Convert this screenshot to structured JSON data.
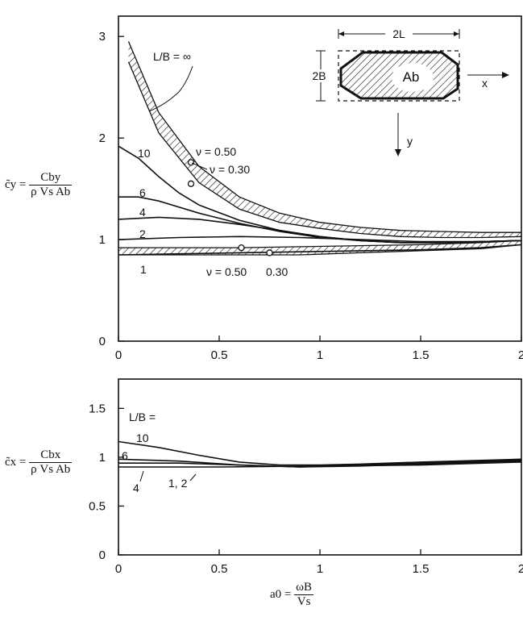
{
  "chart_data": [
    {
      "type": "line",
      "panel": "upper",
      "xlim": [
        0,
        2
      ],
      "ylim": [
        0,
        3.2
      ],
      "xticks": [
        "0",
        "0.5",
        "1",
        "1.5",
        "2"
      ],
      "yticks": [
        "0",
        "1",
        "2",
        "3"
      ],
      "ylabel": {
        "lhs": "c̃y =",
        "num": "Cby",
        "den": "ρ Vs Ab"
      },
      "series": [
        {
          "name": "1",
          "x": [
            0,
            0.3,
            0.6,
            0.9,
            1.2,
            1.5,
            1.8,
            2.0
          ],
          "y": [
            0.85,
            0.86,
            0.87,
            0.88,
            0.89,
            0.9,
            0.92,
            0.95
          ]
        },
        {
          "name": "2",
          "x": [
            0,
            0.3,
            0.6,
            0.9,
            1.2,
            1.5,
            1.8,
            2.0
          ],
          "y": [
            1.0,
            1.02,
            1.03,
            1.02,
            1.0,
            0.98,
            0.98,
            0.99
          ]
        },
        {
          "name": "4",
          "x": [
            0,
            0.2,
            0.4,
            0.6,
            0.8,
            1.0,
            1.2,
            1.4,
            1.6,
            1.8,
            2.0
          ],
          "y": [
            1.2,
            1.22,
            1.2,
            1.15,
            1.09,
            1.03,
            0.99,
            0.97,
            0.97,
            0.98,
            0.99
          ]
        },
        {
          "name": "6",
          "x": [
            0,
            0.1,
            0.2,
            0.4,
            0.6,
            0.8,
            1.0,
            1.2,
            1.4,
            1.6,
            1.8,
            2.0
          ],
          "y": [
            1.42,
            1.42,
            1.38,
            1.26,
            1.16,
            1.08,
            1.02,
            0.99,
            0.97,
            0.97,
            0.98,
            0.99
          ]
        },
        {
          "name": "10",
          "x": [
            0,
            0.1,
            0.2,
            0.3,
            0.4,
            0.6,
            0.8,
            1.0,
            1.2,
            1.4,
            1.6,
            1.8,
            2.0
          ],
          "y": [
            1.92,
            1.8,
            1.62,
            1.46,
            1.34,
            1.19,
            1.09,
            1.03,
            0.99,
            0.97,
            0.97,
            0.98,
            0.99
          ]
        }
      ],
      "bands": [
        {
          "name": "∞",
          "x": [
            0.05,
            0.2,
            0.4,
            0.6,
            0.8,
            1.0,
            1.2,
            1.4,
            1.6,
            1.8,
            2.0
          ],
          "upper": [
            2.95,
            2.25,
            1.72,
            1.42,
            1.26,
            1.17,
            1.12,
            1.09,
            1.08,
            1.07,
            1.07
          ],
          "lower": [
            2.75,
            2.05,
            1.56,
            1.3,
            1.17,
            1.11,
            1.06,
            1.03,
            1.02,
            1.02,
            1.03
          ]
        },
        {
          "name": "1",
          "x": [
            0,
            0.3,
            0.6,
            0.9,
            1.2,
            1.5,
            1.8,
            2.0
          ],
          "upper": [
            0.92,
            0.92,
            0.92,
            0.93,
            0.94,
            0.95,
            0.97,
            0.99
          ],
          "lower": [
            0.85,
            0.85,
            0.85,
            0.85,
            0.87,
            0.89,
            0.91,
            0.95
          ]
        }
      ],
      "annotations": {
        "lb_label": "L/B = ∞",
        "nu50_upper": "ν = 0.50",
        "nu30_upper": "ν = 0.30",
        "nu50_lower": "ν = 0.50",
        "nu30_lower": "0.30",
        "curve_10": "10",
        "curve_6": "6",
        "curve_4": "4",
        "curve_2": "2",
        "curve_1": "1"
      },
      "markers": [
        {
          "x": 0.36,
          "y": 1.76
        },
        {
          "x": 0.36,
          "y": 1.55
        },
        {
          "x": 0.61,
          "y": 0.92
        },
        {
          "x": 0.75,
          "y": 0.87
        }
      ],
      "inset": {
        "width_label": "2L",
        "height_label": "2B",
        "area_label": "Ab",
        "x_axis": "x",
        "y_axis": "y"
      }
    },
    {
      "type": "line",
      "panel": "lower",
      "xlim": [
        0,
        2
      ],
      "ylim": [
        0,
        1.8
      ],
      "xticks": [
        "0",
        "0.5",
        "1",
        "1.5",
        "2"
      ],
      "yticks": [
        "0",
        "0.5",
        "1",
        "1.5"
      ],
      "ylabel": {
        "lhs": "c̃x =",
        "num": "Cbx",
        "den": "ρ Vs Ab"
      },
      "xlabel": {
        "lhs": "a0 =",
        "num": "ωB",
        "den": "Vs"
      },
      "series": [
        {
          "name": "1, 2",
          "x": [
            0,
            0.5,
            1.0,
            1.5,
            2.0
          ],
          "y": [
            0.9,
            0.9,
            0.91,
            0.92,
            0.95
          ]
        },
        {
          "name": "4",
          "x": [
            0,
            0.3,
            0.6,
            0.9,
            1.2,
            1.5,
            2.0
          ],
          "y": [
            0.94,
            0.94,
            0.92,
            0.9,
            0.91,
            0.93,
            0.96
          ]
        },
        {
          "name": "6",
          "x": [
            0,
            0.3,
            0.6,
            0.9,
            1.2,
            1.5,
            2.0
          ],
          "y": [
            0.98,
            0.96,
            0.92,
            0.9,
            0.92,
            0.94,
            0.97
          ]
        },
        {
          "name": "10",
          "x": [
            0,
            0.2,
            0.4,
            0.6,
            0.8,
            1.0,
            1.2,
            1.5,
            2.0
          ],
          "y": [
            1.16,
            1.1,
            1.02,
            0.95,
            0.92,
            0.92,
            0.93,
            0.95,
            0.98
          ]
        }
      ],
      "annotations": {
        "lb_label": "L/B =",
        "curve_10": "10",
        "curve_6": "6",
        "curve_4": "4",
        "curve_12": "1, 2"
      }
    }
  ]
}
